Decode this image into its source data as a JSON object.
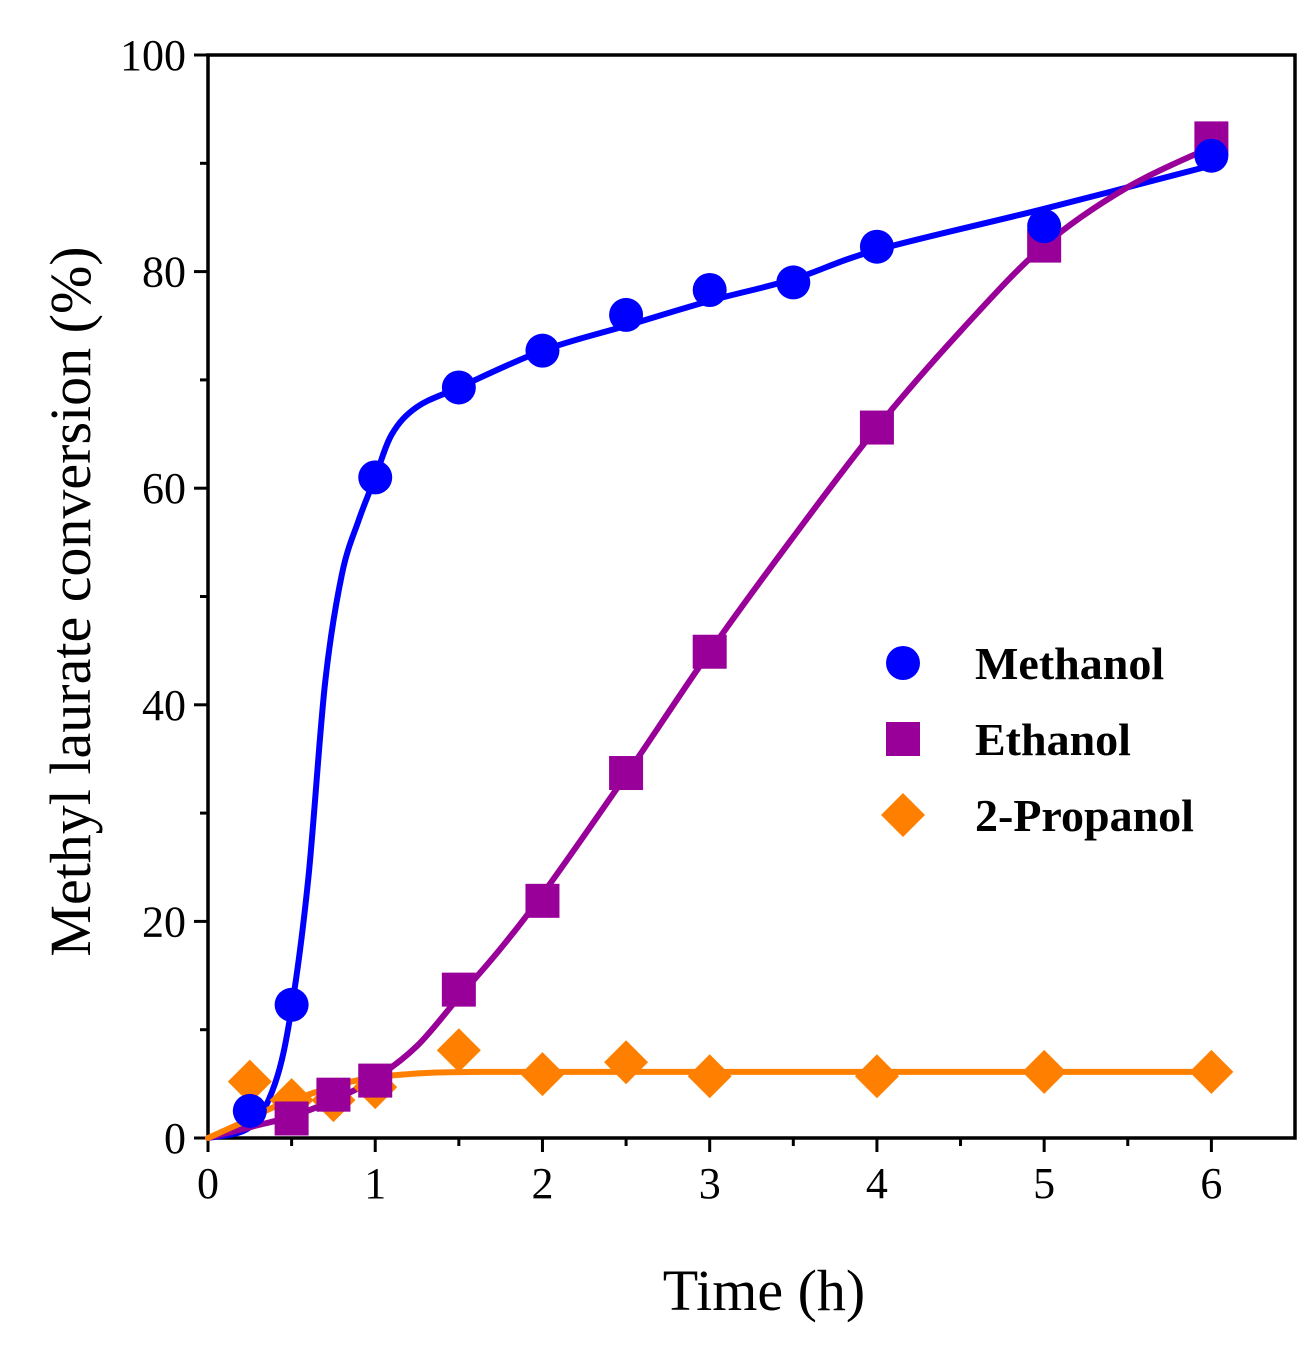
{
  "chart_data": {
    "type": "line",
    "title": "",
    "xlabel": "Time (h)",
    "ylabel": "Methyl laurate conversion (%)",
    "xlim": [
      0,
      6.5
    ],
    "ylim": [
      0,
      100
    ],
    "xticks": [
      0,
      1,
      2,
      3,
      4,
      5,
      6
    ],
    "yticks": [
      0,
      20,
      40,
      60,
      80,
      100
    ],
    "x_minor_ticks": [
      0.5,
      1.5,
      2.5,
      3.5,
      4.5,
      5.5
    ],
    "y_minor_ticks": [
      10,
      30,
      50,
      70,
      90
    ],
    "grid": false,
    "legend_position": "center-right",
    "series": [
      {
        "name": "Methanol",
        "marker": "circle",
        "color": "#0000ff",
        "x": [
          0.25,
          0.5,
          1.0,
          1.5,
          2.0,
          2.5,
          3.0,
          3.5,
          4.0,
          5.0,
          6.0
        ],
        "y": [
          2.5,
          12.3,
          61.0,
          69.3,
          72.7,
          76.0,
          78.3,
          79.0,
          82.3,
          84.2,
          90.7
        ],
        "fit_x": [
          0,
          0.25,
          0.4,
          0.5,
          0.6,
          0.7,
          0.8,
          0.9,
          1.0,
          1.1,
          1.25,
          1.5,
          2.0,
          2.5,
          3.0,
          3.5,
          4.0,
          5.0,
          6.0
        ],
        "fit_y": [
          0,
          1.0,
          5.0,
          12.0,
          24.0,
          42.0,
          52.0,
          57.0,
          61.0,
          65.0,
          67.5,
          69.3,
          72.7,
          75.0,
          77.3,
          79.3,
          82.0,
          85.8,
          89.8
        ]
      },
      {
        "name": "Ethanol",
        "marker": "square",
        "color": "#990099",
        "x": [
          0.5,
          0.75,
          1.0,
          1.5,
          2.0,
          2.5,
          3.0,
          4.0,
          5.0,
          6.0
        ],
        "y": [
          1.8,
          4.0,
          5.3,
          13.7,
          21.9,
          33.7,
          44.9,
          65.6,
          82.4,
          92.3
        ],
        "fit_x": [
          0,
          0.25,
          0.5,
          0.75,
          1.0,
          1.25,
          1.5,
          1.75,
          2.0,
          2.5,
          3.0,
          3.5,
          4.0,
          4.5,
          5.0,
          5.5,
          6.0
        ],
        "fit_y": [
          0,
          1.0,
          2.0,
          3.5,
          5.5,
          8.5,
          13.0,
          17.5,
          22.5,
          33.5,
          44.9,
          55.5,
          65.6,
          74.5,
          82.4,
          87.8,
          91.5
        ]
      },
      {
        "name": "2-Propanol",
        "marker": "diamond",
        "color": "#ff8000",
        "x": [
          0.25,
          0.5,
          0.75,
          1.0,
          1.5,
          2.0,
          2.5,
          3.0,
          4.0,
          5.0,
          6.0
        ],
        "y": [
          5.2,
          3.5,
          3.5,
          4.7,
          8.1,
          5.9,
          7.0,
          5.7,
          5.7,
          6.1,
          6.1
        ],
        "fit_x": [
          0,
          0.2,
          0.4,
          0.6,
          0.8,
          1.0,
          1.3,
          1.6,
          2.0,
          3.0,
          4.0,
          5.0,
          6.0
        ],
        "fit_y": [
          0,
          1.4,
          2.9,
          4.0,
          5.0,
          5.6,
          6.0,
          6.1,
          6.1,
          6.1,
          6.1,
          6.1,
          6.1
        ]
      }
    ]
  }
}
